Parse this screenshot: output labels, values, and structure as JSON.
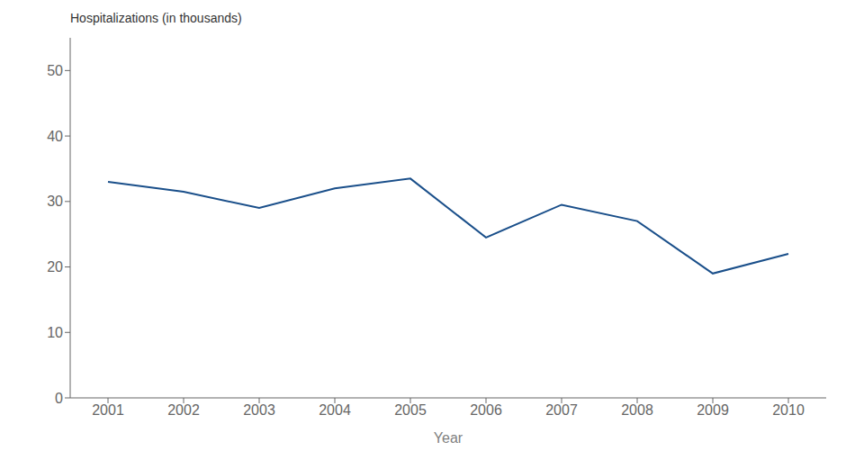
{
  "chart_data": {
    "type": "line",
    "xlabel": "Year",
    "ylabel": "Hospitalizations (in thousands)",
    "x": [
      2001,
      2002,
      2003,
      2004,
      2005,
      2006,
      2007,
      2008,
      2009,
      2010
    ],
    "values": [
      33.0,
      31.5,
      29.0,
      32.0,
      33.5,
      24.5,
      29.5,
      27.0,
      19.0,
      22.0
    ],
    "color": "#1a4f8a",
    "xlim": [
      2000.5,
      2010.5
    ],
    "ylim": [
      0,
      55
    ],
    "xticks": [
      2001,
      2002,
      2003,
      2004,
      2005,
      2006,
      2007,
      2008,
      2009,
      2010
    ],
    "yticks": [
      0,
      10,
      20,
      30,
      40,
      50
    ],
    "grid": false
  }
}
